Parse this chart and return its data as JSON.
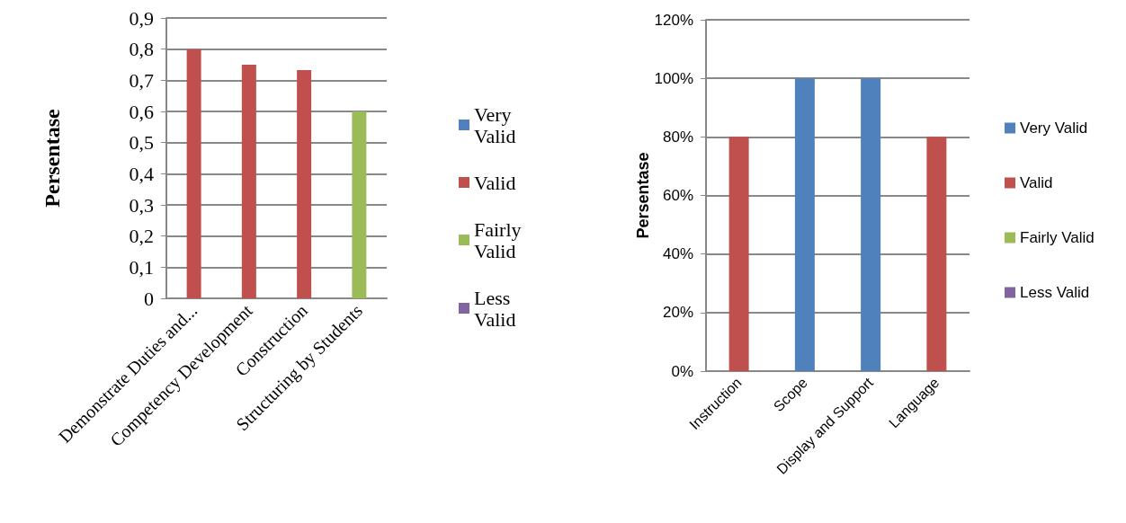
{
  "chart_data": [
    {
      "type": "bar",
      "stacked": true,
      "ylabel": "Persentase",
      "categories": [
        "Demonstrate Duties and...",
        "Competency Development",
        "Construction",
        "Structuring by Students"
      ],
      "series": [
        {
          "name": "Very Valid",
          "color": "#4f81bd",
          "values": [
            null,
            null,
            null,
            null
          ]
        },
        {
          "name": "Valid",
          "color": "#c0504d",
          "values": [
            0.8,
            0.75,
            0.733,
            null
          ]
        },
        {
          "name": "Fairly Valid",
          "color": "#9bbb59",
          "values": [
            null,
            null,
            null,
            0.6
          ]
        },
        {
          "name": "Less Valid",
          "color": "#8064a2",
          "values": [
            null,
            null,
            null,
            null
          ]
        }
      ],
      "ylim": [
        0,
        0.9
      ],
      "yticks": [
        0,
        {
          "value": 0.1,
          "label": "0,1"
        },
        {
          "value": 0.2,
          "label": "0,2"
        },
        {
          "value": 0.3,
          "label": "0,3"
        },
        {
          "value": 0.4,
          "label": "0,4"
        },
        {
          "value": 0.5,
          "label": "0,5"
        },
        {
          "value": 0.6,
          "label": "0,6"
        },
        {
          "value": 0.7,
          "label": "0,7"
        },
        {
          "value": 0.8,
          "label": "0,8"
        },
        {
          "value": 0.9,
          "label": "0,9"
        }
      ],
      "grid": "y",
      "legend": "right"
    },
    {
      "type": "bar",
      "stacked": true,
      "ylabel": "Persentase",
      "categories": [
        "Instruction",
        "Scope",
        "Display and Support",
        "Language"
      ],
      "series": [
        {
          "name": "Very Valid",
          "color": "#4f81bd",
          "values": [
            null,
            100,
            100,
            null
          ]
        },
        {
          "name": "Valid",
          "color": "#c0504d",
          "values": [
            80,
            null,
            null,
            80
          ]
        },
        {
          "name": "Fairly Valid",
          "color": "#9bbb59",
          "values": [
            null,
            null,
            null,
            null
          ]
        },
        {
          "name": "Less Valid",
          "color": "#8064a2",
          "values": [
            null,
            null,
            null,
            null
          ]
        }
      ],
      "ylim": [
        0,
        120
      ],
      "yticks": [
        {
          "value": 0,
          "label": "0%"
        },
        {
          "value": 20,
          "label": "20%"
        },
        {
          "value": 40,
          "label": "40%"
        },
        {
          "value": 60,
          "label": "60%"
        },
        {
          "value": 80,
          "label": "80%"
        },
        {
          "value": 100,
          "label": "100%"
        },
        {
          "value": 120,
          "label": "120%"
        }
      ],
      "grid": "y",
      "legend": "right"
    }
  ]
}
